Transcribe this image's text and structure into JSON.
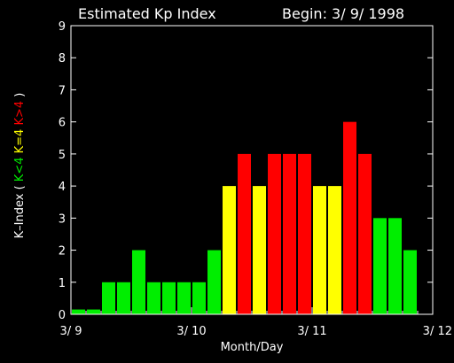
{
  "chart_data": {
    "type": "bar",
    "title_left": "Estimated Kp Index",
    "title_right": "Begin: 3/ 9/ 1998",
    "xlabel": "Month/Day",
    "ylabel_parts": [
      {
        "text": "K–Index",
        "color": "#ffffff"
      },
      {
        "text": " ( ",
        "color": "#ffffff"
      },
      {
        "text": "K<4",
        "color": "#00ee00"
      },
      {
        "text": " ",
        "color": "#ffffff"
      },
      {
        "text": "K=4",
        "color": "#ffff00"
      },
      {
        "text": " ",
        "color": "#ffffff"
      },
      {
        "text": "K>4",
        "color": "#ff0000"
      },
      {
        "text": " )",
        "color": "#ffffff"
      }
    ],
    "ylim": [
      0,
      9
    ],
    "yticks": [
      0,
      1,
      2,
      3,
      4,
      5,
      6,
      7,
      8,
      9
    ],
    "xticks": [
      "3/ 9",
      "3/ 10",
      "3/ 11",
      "3/ 12"
    ],
    "bars_per_day": 8,
    "values": [
      0.15,
      0.15,
      1,
      1,
      2,
      1,
      1,
      1,
      1,
      2,
      4,
      5,
      4,
      5,
      5,
      5,
      4,
      4,
      6,
      5,
      3,
      3,
      2
    ],
    "colors": {
      "low": "#00ee00",
      "equal": "#ffff00",
      "high": "#ff0000",
      "axes": "#ffffff",
      "background": "#000000"
    }
  }
}
